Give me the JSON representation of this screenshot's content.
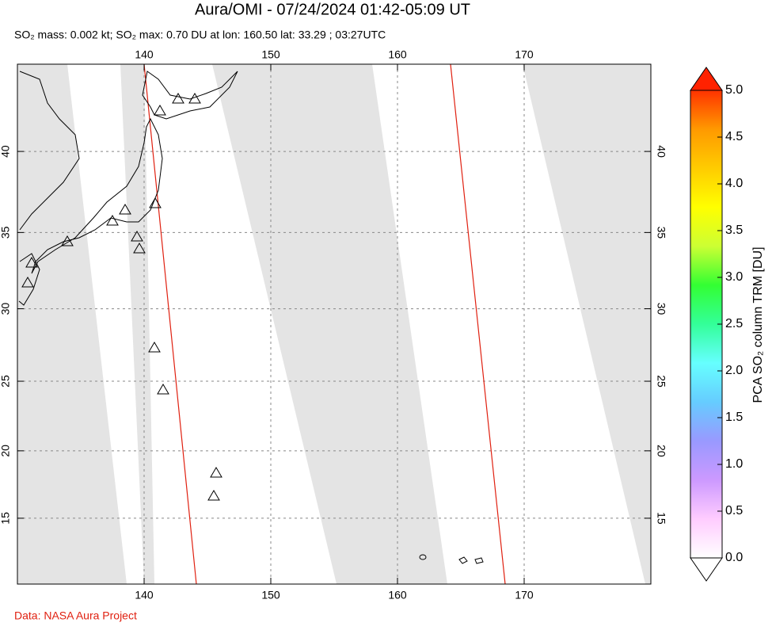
{
  "chart_data": {
    "type": "map",
    "title": "Aura/OMI - 07/24/2024 01:42-05:09 UT",
    "subtitle": "SO₂ mass: 0.002 kt; SO₂ max: 0.70 DU at lon: 160.50 lat: 33.29 ; 03:27UTC",
    "xlim": [
      130,
      180
    ],
    "xticks": [
      140,
      150,
      160,
      170
    ],
    "ylim": [
      10,
      45
    ],
    "yticks": [
      15,
      20,
      25,
      30,
      35,
      40
    ],
    "projection": "mercator",
    "grid": true,
    "colorbar": {
      "label": "PCA SO₂ column TRM [DU]",
      "lim": [
        0,
        5
      ],
      "ticks": [
        {
          "value": 0,
          "label": "0.0"
        },
        0.5,
        {
          "value": 1,
          "label": "1.0"
        },
        1.5,
        {
          "value": 2,
          "label": "2.0"
        },
        2.5,
        {
          "value": 3,
          "label": "3.0"
        },
        3.5,
        {
          "value": 4,
          "label": "4.0"
        },
        4.5,
        {
          "value": 5,
          "label": "5.0"
        }
      ],
      "colors": [
        "#ffffff",
        "#ffccff",
        "#cc99ff",
        "#9999ff",
        "#66ccff",
        "#66ffff",
        "#33ff99",
        "#33ff33",
        "#ccff33",
        "#ffff00",
        "#ffcc00",
        "#ff9900",
        "#ff3300"
      ]
    },
    "credit": "Data: NASA Aura Project"
  }
}
